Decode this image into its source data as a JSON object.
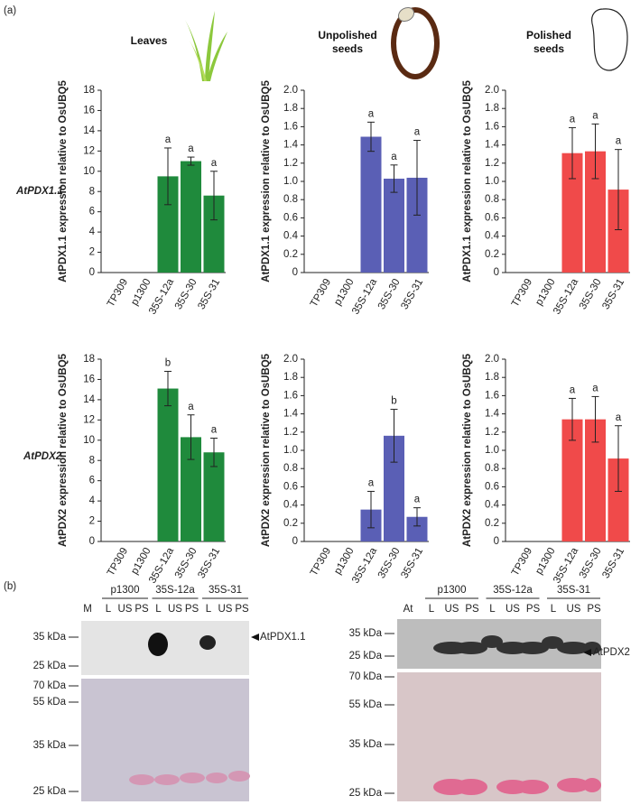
{
  "panel_labels": [
    "(a)",
    "(b)"
  ],
  "column_titles": [
    "Leaves",
    "Unpolished seeds",
    "Polished seeds"
  ],
  "row_labels": [
    "AtPDX1.1",
    "AtPDX2"
  ],
  "chart_data": [
    {
      "type": "bar",
      "ylabel": "AtPDX1.1 expression relative to OsUBQ5",
      "categories": [
        "TP309",
        "p1300",
        "35S-12a",
        "35S-30",
        "35S-31"
      ],
      "values": [
        0,
        0,
        9.5,
        11.0,
        7.6
      ],
      "errors": [
        null,
        null,
        2.8,
        0.4,
        2.4
      ],
      "annotations": [
        null,
        null,
        "a",
        "a",
        "a"
      ],
      "color": "#1f8a3c",
      "ylim": [
        0,
        18
      ],
      "yticks": [
        0,
        2,
        4,
        6,
        8,
        10,
        12,
        14,
        16,
        18
      ]
    },
    {
      "type": "bar",
      "ylabel": "AtPDX1.1 expression relative to OsUBQ5",
      "categories": [
        "TP309",
        "p1300",
        "35S-12a",
        "35S-30",
        "35S-31"
      ],
      "values": [
        0,
        0,
        1.49,
        1.03,
        1.04
      ],
      "errors": [
        null,
        null,
        0.16,
        0.15,
        0.41
      ],
      "annotations": [
        null,
        null,
        "a",
        "a",
        "a"
      ],
      "color": "#5a5fb5",
      "ylim": [
        0,
        2
      ],
      "yticks": [
        0,
        0.2,
        0.4,
        0.6,
        0.8,
        {
          "value": 1,
          "label": "1.0"
        },
        1.2,
        1.4,
        1.6,
        1.8,
        {
          "value": 2,
          "label": "2.0"
        }
      ]
    },
    {
      "type": "bar",
      "ylabel": "AtPDX1.1 expression relative to OsUBQ5",
      "categories": [
        "TP309",
        "p1300",
        "35S-12a",
        "35S-30",
        "35S-31"
      ],
      "values": [
        0,
        0,
        1.31,
        1.33,
        0.91
      ],
      "errors": [
        null,
        null,
        0.28,
        0.3,
        0.44
      ],
      "annotations": [
        null,
        null,
        "a",
        "a",
        "a"
      ],
      "color": "#f04a4a",
      "ylim": [
        0,
        2
      ],
      "yticks": [
        0,
        0.2,
        0.4,
        0.6,
        0.8,
        {
          "value": 1,
          "label": "1.0"
        },
        1.2,
        1.4,
        1.6,
        1.8,
        {
          "value": 2,
          "label": "2.0"
        }
      ]
    },
    {
      "type": "bar",
      "ylabel": "AtPDX2 expression relative to OsUBQ5",
      "categories": [
        "TP309",
        "p1300",
        "35S-12a",
        "35S-30",
        "35S-31"
      ],
      "values": [
        0,
        0,
        15.1,
        10.3,
        8.8
      ],
      "errors": [
        null,
        null,
        1.7,
        2.2,
        1.4
      ],
      "annotations": [
        null,
        null,
        "b",
        "a",
        "a"
      ],
      "color": "#1f8a3c",
      "ylim": [
        0,
        18
      ],
      "yticks": [
        0,
        2,
        4,
        6,
        8,
        10,
        12,
        14,
        16,
        18
      ]
    },
    {
      "type": "bar",
      "ylabel": "AtPDX2 expression relative to OsUBQ5",
      "categories": [
        "TP309",
        "p1300",
        "35S-12a",
        "35S-30",
        "35S-31"
      ],
      "values": [
        0,
        0,
        0.35,
        1.16,
        0.27
      ],
      "errors": [
        null,
        null,
        0.2,
        0.29,
        0.1
      ],
      "annotations": [
        null,
        null,
        "a",
        "b",
        "a"
      ],
      "color": "#5a5fb5",
      "ylim": [
        0,
        2
      ],
      "yticks": [
        0,
        0.2,
        0.4,
        0.6,
        0.8,
        {
          "value": 1,
          "label": "1.0"
        },
        1.2,
        1.4,
        1.6,
        1.8,
        {
          "value": 2,
          "label": "2.0"
        }
      ]
    },
    {
      "type": "bar",
      "ylabel": "AtPDX2 expression relative to OsUBQ5",
      "categories": [
        "TP309",
        "p1300",
        "35S-12a",
        "35S-30",
        "35S-31"
      ],
      "values": [
        0,
        0,
        1.34,
        1.34,
        0.91
      ],
      "errors": [
        null,
        null,
        0.23,
        0.25,
        0.36
      ],
      "annotations": [
        null,
        null,
        "a",
        "a",
        "a"
      ],
      "color": "#f04a4a",
      "ylim": [
        0,
        2
      ],
      "yticks": [
        0,
        0.2,
        0.4,
        0.6,
        0.8,
        {
          "value": 1,
          "label": "1.0"
        },
        1.2,
        1.4,
        1.6,
        1.8,
        {
          "value": 2,
          "label": "2.0"
        }
      ]
    }
  ],
  "blots": [
    {
      "groups": [
        "p1300",
        "35S-12a",
        "35S-31"
      ],
      "lanes": [
        "M",
        "L",
        "US",
        "PS",
        "L",
        "US",
        "PS",
        "L",
        "US",
        "PS"
      ],
      "top_markers": [
        "35 kDa",
        "25 kDa"
      ],
      "bottom_markers": [
        "70 kDa",
        "55 kDa",
        "35 kDa",
        "25 kDa"
      ],
      "protein": "AtPDX1.1"
    },
    {
      "groups": [
        "p1300",
        "35S-12a",
        "35S-31"
      ],
      "lanes": [
        "At",
        "L",
        "US",
        "PS",
        "L",
        "US",
        "PS",
        "L",
        "US",
        "PS"
      ],
      "top_markers": [
        "35 kDa",
        "25 kDa"
      ],
      "bottom_markers": [
        "70 kDa",
        "55 kDa",
        "35 kDa",
        "25 kDa"
      ],
      "protein": "AtPDX2"
    }
  ]
}
